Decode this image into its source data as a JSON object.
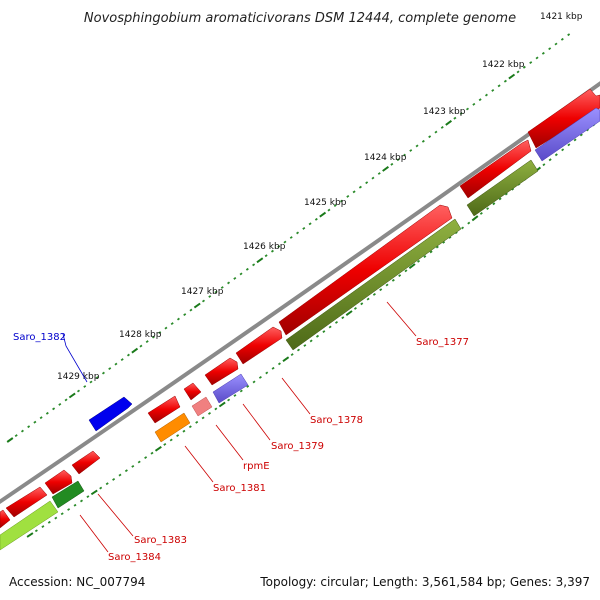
{
  "title": "Novosphingobium aromaticivorans DSM 12444, complete genome",
  "footer": {
    "accession": "Accession: NC_007794",
    "summary": "Topology: circular; Length: 3,561,584 bp; Genes: 3,397"
  },
  "ticks": [
    "1421 kbp",
    "1422 kbp",
    "1423 kbp",
    "1424 kbp",
    "1425 kbp",
    "1426 kbp",
    "1427 kbp",
    "1428 kbp",
    "1429 kbp"
  ],
  "gene_labels": [
    {
      "name": "Saro_1382",
      "color": "#0000cc"
    },
    {
      "name": "Saro_1377",
      "color": "#cc0000"
    },
    {
      "name": "Saro_1378",
      "color": "#cc0000"
    },
    {
      "name": "Saro_1379",
      "color": "#cc0000"
    },
    {
      "name": "rpmE",
      "color": "#cc0000"
    },
    {
      "name": "Saro_1381",
      "color": "#cc0000"
    },
    {
      "name": "Saro_1383",
      "color": "#cc0000"
    },
    {
      "name": "Saro_1384",
      "color": "#cc0000"
    }
  ],
  "colors": {
    "backbone": "#888888",
    "cds": "#ee0000",
    "gene_olive": "#6b8e23",
    "gene_purple": "#7b68ee",
    "gene_blue": "#0000ee",
    "gene_orange": "#ff8c00",
    "gene_pink": "#f08080",
    "gene_lime": "#a0e040",
    "gene_darkgreen": "#228b22",
    "tick_major": "#1a7a1a",
    "tick_minor": "#2a8a2a"
  }
}
